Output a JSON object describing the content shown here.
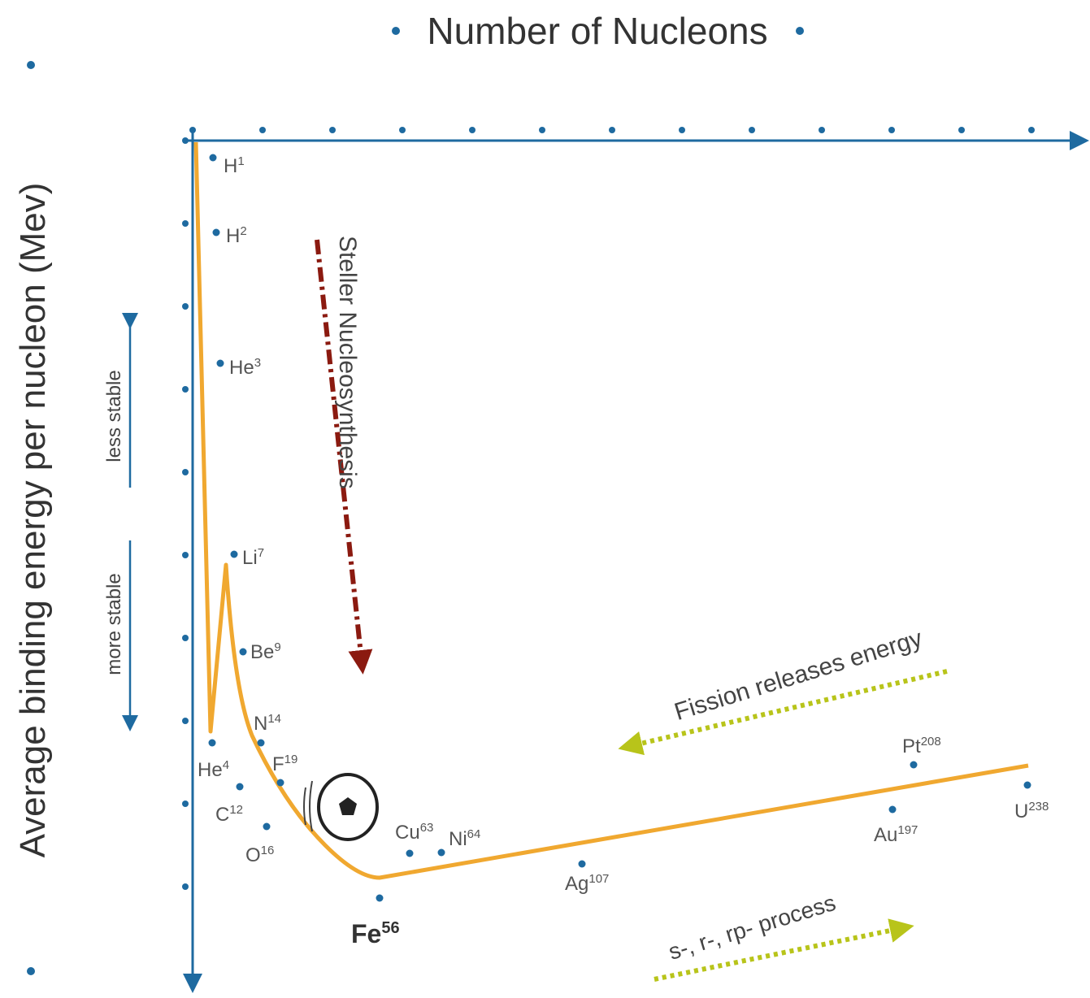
{
  "x_axis": {
    "label": "Number of Nucleons"
  },
  "y_axis": {
    "label": "Average binding energy per nucleon (Mev)"
  },
  "stability": {
    "less": "less stable",
    "more": "more stable"
  },
  "annotations": {
    "stellar": "Steller Nucleosynthesis",
    "fission": "Fission releases energy",
    "process": "s-, r-, rp- process"
  },
  "nuclides": [
    {
      "symbol": "H",
      "mass": 1
    },
    {
      "symbol": "H",
      "mass": 2
    },
    {
      "symbol": "He",
      "mass": 3
    },
    {
      "symbol": "Li",
      "mass": 7
    },
    {
      "symbol": "Be",
      "mass": 9
    },
    {
      "symbol": "He",
      "mass": 4
    },
    {
      "symbol": "N",
      "mass": 14
    },
    {
      "symbol": "C",
      "mass": 12
    },
    {
      "symbol": "F",
      "mass": 19
    },
    {
      "symbol": "O",
      "mass": 16
    },
    {
      "symbol": "Fe",
      "mass": 56
    },
    {
      "symbol": "Cu",
      "mass": 63
    },
    {
      "symbol": "Ni",
      "mass": 64
    },
    {
      "symbol": "Ag",
      "mass": 107
    },
    {
      "symbol": "Au",
      "mass": 197
    },
    {
      "symbol": "Pt",
      "mass": 208
    },
    {
      "symbol": "U",
      "mass": 238
    }
  ]
}
